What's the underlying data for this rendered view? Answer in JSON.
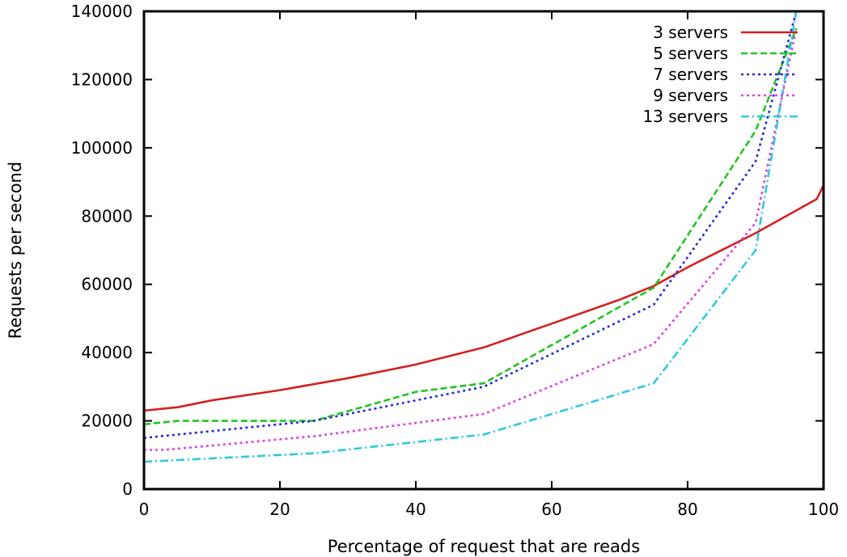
{
  "chart_data": {
    "type": "line",
    "title": "",
    "xlabel": "Percentage of request that are reads",
    "ylabel": "Requests per second",
    "xlim": [
      0,
      100
    ],
    "ylim": [
      0,
      140000
    ],
    "xticks": [
      0,
      20,
      40,
      60,
      80,
      100
    ],
    "yticks": [
      0,
      20000,
      40000,
      60000,
      80000,
      100000,
      120000,
      140000
    ],
    "xtick_labels": [
      "0",
      "20",
      "40",
      "60",
      "80",
      "100"
    ],
    "ytick_labels": [
      "0",
      "20000",
      "40000",
      "60000",
      "80000",
      "100000",
      "120000",
      "140000"
    ],
    "grid": false,
    "legend_position": "top-right",
    "series": [
      {
        "name": "3 servers",
        "color": "#d42020",
        "dash": "solid",
        "x": [
          0,
          5,
          10,
          20,
          30,
          40,
          50,
          60,
          70,
          75,
          80,
          90,
          99,
          100
        ],
        "y": [
          23000,
          24000,
          26000,
          29000,
          32500,
          36500,
          41500,
          48500,
          55500,
          59500,
          65000,
          75000,
          85000,
          89000
        ]
      },
      {
        "name": "5 servers",
        "color": "#22c422",
        "dash": "dashed",
        "x": [
          0,
          5,
          25,
          40,
          50,
          75,
          90,
          96
        ],
        "y": [
          19000,
          20000,
          20000,
          28500,
          31000,
          59000,
          105000,
          135000
        ]
      },
      {
        "name": "7 servers",
        "color": "#2a2ad4",
        "dash": "dotted",
        "x": [
          0,
          25,
          50,
          75,
          90,
          96
        ],
        "y": [
          15000,
          20000,
          30000,
          54000,
          96000,
          140000
        ]
      },
      {
        "name": "9 servers",
        "color": "#e040e0",
        "dash": "dotted",
        "x": [
          0,
          3,
          25,
          50,
          75,
          90,
          96
        ],
        "y": [
          11500,
          11500,
          15500,
          22000,
          42500,
          78000,
          135000
        ]
      },
      {
        "name": "13 servers",
        "color": "#30c8e0",
        "dash": "dashdot",
        "x": [
          0,
          25,
          50,
          75,
          90,
          96
        ],
        "y": [
          8000,
          10500,
          16000,
          31000,
          70000,
          140000
        ]
      }
    ]
  }
}
